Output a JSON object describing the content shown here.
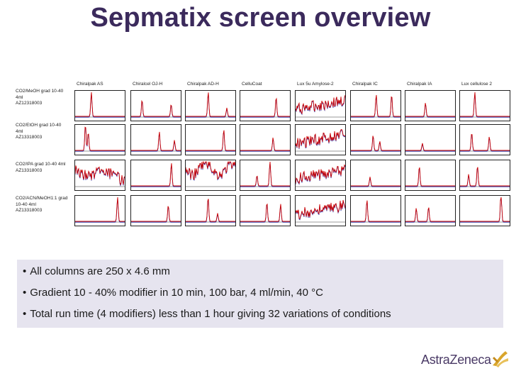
{
  "slide": {
    "title": "Sepmatix screen overview"
  },
  "grid": {
    "columns": [
      "Chiralpak AS",
      "Chiralcel OJ-H",
      "Chiralpak AD-H",
      "CelluCoat",
      "Lux 5u Amylose-2",
      "Chiralpak IC",
      "Chiralpak IA",
      "Lux cellulose 2"
    ],
    "rows": [
      {
        "label_lines": [
          "CO2/MeOH grad 10-40",
          "4ml",
          "AZ12318003"
        ]
      },
      {
        "label_lines": [
          "CO2/EtOH grad 10-40",
          "4ml",
          "AZ13318003"
        ]
      },
      {
        "label_lines": [
          "CO2/IPA grad 10-40 4ml",
          "AZ13318003"
        ]
      },
      {
        "label_lines": [
          "CO2/ACN/MeOH1:1 grad",
          "10-40 4ml",
          "AZ13318003"
        ]
      }
    ],
    "trace_colors": {
      "primary": "#cc0000",
      "secondary": "#1f2aa8",
      "baseline": "#333333"
    }
  },
  "bullets": [
    "All columns are 250 x 4.6 mm",
    "Gradient 10 - 40% modifier in 10 min, 100 bar, 4 ml/min, 40 °C",
    "Total run time (4 modifiers) less than 1 hour giving 32 variations of conditions"
  ],
  "bullet_glyph": "•",
  "logo": {
    "text": "AstraZeneca",
    "icon": "astrazeneca-logo-icon",
    "color": "#4a3a66",
    "accent": "#d9a52b"
  }
}
